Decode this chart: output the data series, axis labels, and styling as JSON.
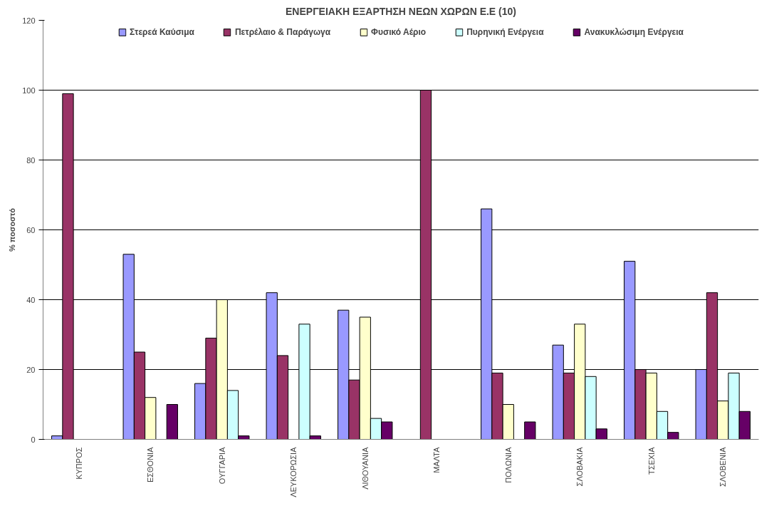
{
  "chart_data": {
    "type": "bar",
    "title": "ΕΝΕΡΓΕΙΑΚΗ ΕΞΑΡΤΗΣΗ ΝΕΩΝ ΧΩΡΩΝ Ε.Ε (10)",
    "ylabel": "% ποσοστό",
    "categories": [
      "ΚΥΠΡΟΣ",
      "ΕΣΘΟΝΙΑ",
      "ΟΥΓΓΑΡΙΑ",
      "ΛΕΥΚΟΡΩΣΙΑ",
      "ΛΙΘΟΥΑΝΙΑ",
      "ΜΑΛΤΑ",
      "ΠΟΛΩΝΙΑ",
      "ΣΛΟΒΑΚΙΑ",
      "ΤΣΕΧΙΑ",
      "ΣΛΟΒΕΝΙΑ"
    ],
    "series": [
      {
        "name": "Στερεά Καύσιμα",
        "color": "#9999ff",
        "values": [
          1,
          53,
          16,
          42,
          37,
          null,
          66,
          27,
          51,
          20
        ]
      },
      {
        "name": "Πετρέλαιο & Παράγωγα",
        "color": "#993366",
        "values": [
          99,
          25,
          29,
          24,
          17,
          100,
          19,
          19,
          20,
          42
        ]
      },
      {
        "name": "Φυσικό Αέριο",
        "color": "#ffffcc",
        "values": [
          null,
          12,
          40,
          null,
          35,
          null,
          10,
          33,
          19,
          11
        ]
      },
      {
        "name": "Πυρηνική Ενέργεια",
        "color": "#ccffff",
        "values": [
          null,
          null,
          14,
          33,
          6,
          null,
          null,
          18,
          8,
          19
        ]
      },
      {
        "name": "Ανακυκλώσιμη Ενέργεια",
        "color": "#660066",
        "values": [
          null,
          10,
          1,
          1,
          5,
          null,
          5,
          3,
          2,
          8
        ]
      }
    ],
    "ylim": [
      0,
      120
    ],
    "yticks": [
      0,
      20,
      40,
      60,
      80,
      100,
      120
    ],
    "grid": "y",
    "legend": "top"
  }
}
